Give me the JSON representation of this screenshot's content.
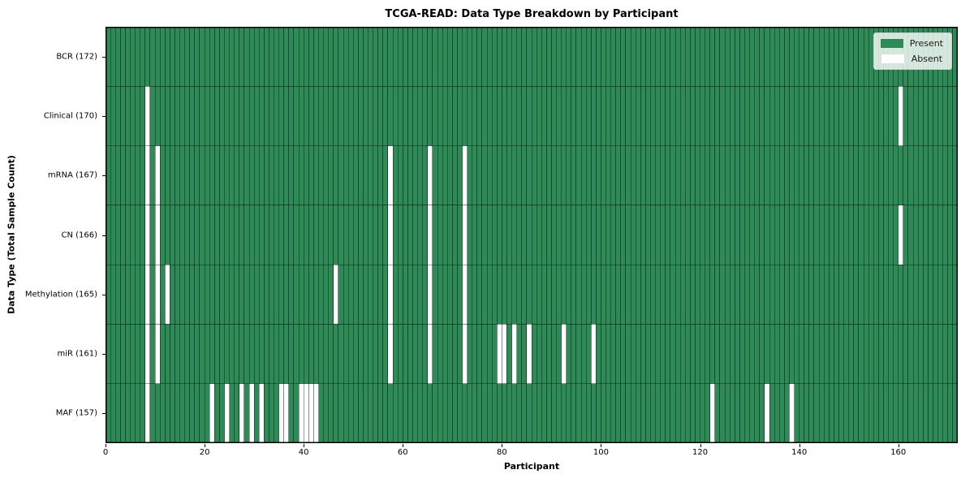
{
  "title": "TCGA-READ: Data Type Breakdown by Participant",
  "chart_data": {
    "type": "heatmap",
    "title": "TCGA-READ: Data Type Breakdown by Participant",
    "xlabel": "Participant",
    "ylabel": "Data Type (Total Sample Count)",
    "n_participants": 172,
    "xlim": [
      0,
      172
    ],
    "x_ticks": [
      0,
      20,
      40,
      60,
      80,
      100,
      120,
      140,
      160
    ],
    "grid": "cell-edges",
    "legend_position": "upper-right",
    "legend": [
      {
        "label": "Present",
        "color": "#2e8b57"
      },
      {
        "label": "Absent",
        "color": "#ffffff"
      }
    ],
    "colors": {
      "present": "#2e8b57",
      "absent": "#ffffff",
      "cell_edge": "rgba(0,0,0,0.75)",
      "border": "#000000"
    },
    "rows": [
      {
        "label": "BCR (172)",
        "data_type": "BCR",
        "total_samples": 172,
        "absent_participants": []
      },
      {
        "label": "Clinical (170)",
        "data_type": "Clinical",
        "total_samples": 170,
        "absent_participants": [
          8,
          160
        ]
      },
      {
        "label": "mRNA (167)",
        "data_type": "mRNA",
        "total_samples": 167,
        "absent_participants": [
          8,
          10,
          57,
          65,
          72
        ]
      },
      {
        "label": "CN (166)",
        "data_type": "CN",
        "total_samples": 166,
        "absent_participants": [
          8,
          10,
          57,
          65,
          72,
          160
        ]
      },
      {
        "label": "Methylation (165)",
        "data_type": "Methylation",
        "total_samples": 165,
        "absent_participants": [
          8,
          10,
          12,
          46,
          57,
          65,
          72
        ]
      },
      {
        "label": "miR (161)",
        "data_type": "miR",
        "total_samples": 161,
        "absent_participants": [
          8,
          10,
          57,
          65,
          72,
          79,
          80,
          82,
          85,
          92,
          98
        ]
      },
      {
        "label": "MAF (157)",
        "data_type": "MAF",
        "total_samples": 157,
        "absent_participants": [
          8,
          21,
          24,
          27,
          29,
          31,
          35,
          36,
          39,
          40,
          41,
          42,
          122,
          133,
          138
        ]
      }
    ]
  }
}
